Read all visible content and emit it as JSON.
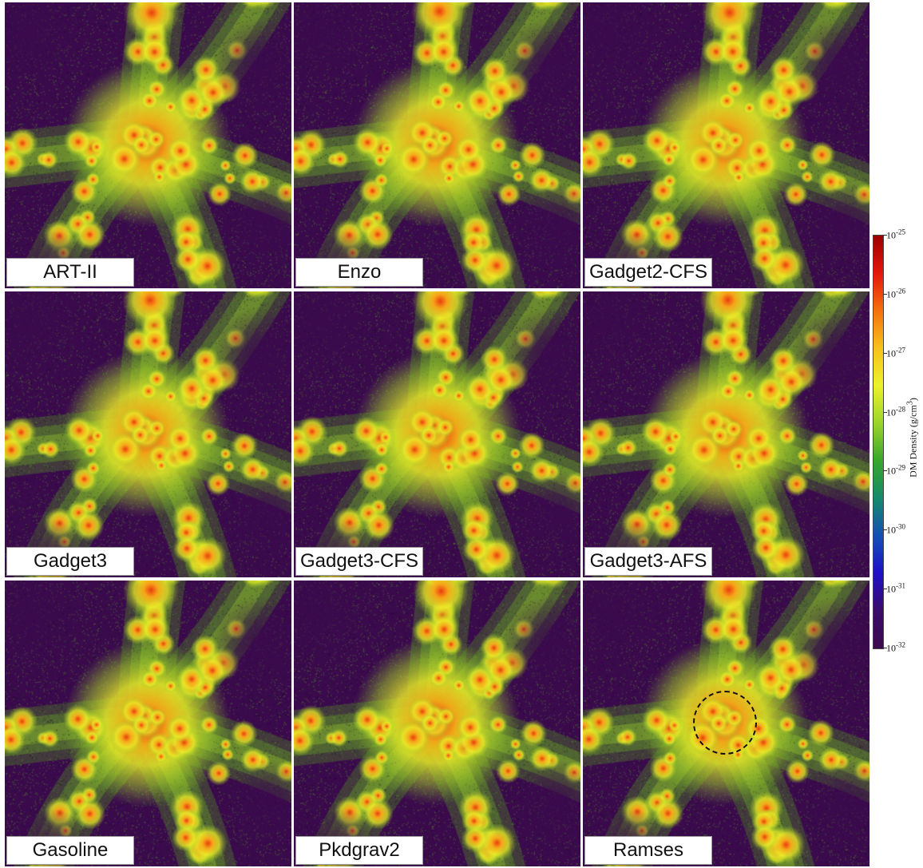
{
  "panels": [
    {
      "label": "ART-II"
    },
    {
      "label": "Enzo"
    },
    {
      "label": "Gadget2-CFS"
    },
    {
      "label": "Gadget3"
    },
    {
      "label": "Gadget3-CFS"
    },
    {
      "label": "Gadget3-AFS"
    },
    {
      "label": "Gasoline"
    },
    {
      "label": "Pkdgrav2"
    },
    {
      "label": "Ramses"
    }
  ],
  "colorbar": {
    "title": "DM Density  (g/cm",
    "title_sup": "3",
    "title_end": ")",
    "ticks": [
      {
        "base": "10",
        "exp": "-25"
      },
      {
        "base": "10",
        "exp": "-26"
      },
      {
        "base": "10",
        "exp": "-27"
      },
      {
        "base": "10",
        "exp": "-28"
      },
      {
        "base": "10",
        "exp": "-29"
      },
      {
        "base": "10",
        "exp": "-30"
      },
      {
        "base": "10",
        "exp": "-31"
      },
      {
        "base": "10",
        "exp": "-32"
      }
    ],
    "colors": [
      "#9b0000",
      "#e3160c",
      "#f5700d",
      "#f7c21b",
      "#ebf22a",
      "#9bd52c",
      "#39a62b",
      "#148a6b",
      "#1450b5",
      "#1e10c8",
      "#3a0b6a",
      "#3b0a4d"
    ]
  }
}
